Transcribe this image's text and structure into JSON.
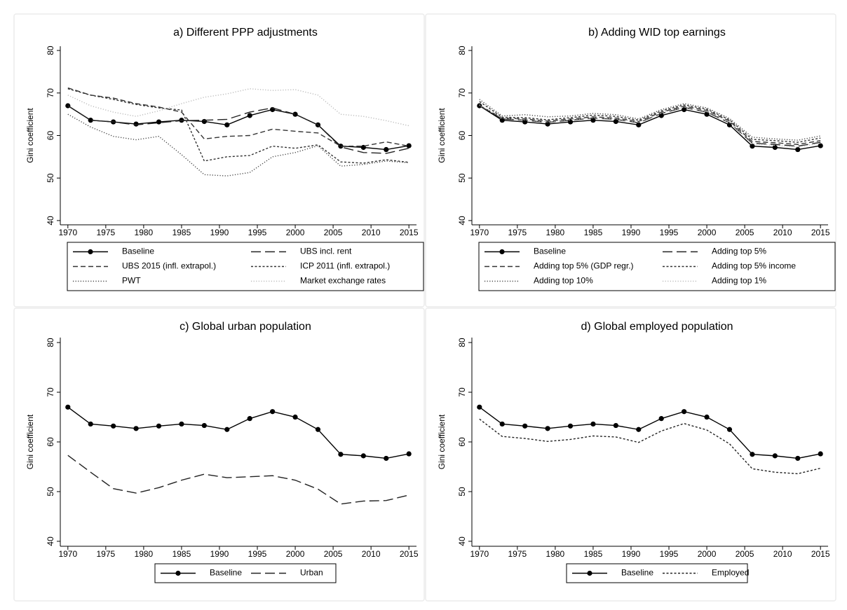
{
  "chart_data": [
    {
      "type": "line",
      "title": "a) Different PPP adjustments",
      "y_label": "Gini coefficient",
      "x": [
        1970,
        1973,
        1976,
        1979,
        1982,
        1985,
        1988,
        1991,
        1994,
        1997,
        2000,
        2003,
        2006,
        2009,
        2012,
        2015
      ],
      "xlim": [
        1969,
        2016
      ],
      "xticks": [
        1970,
        1975,
        1980,
        1985,
        1990,
        1995,
        2000,
        2005,
        2010,
        2015
      ],
      "ylim": [
        39,
        81
      ],
      "yticks": [
        40,
        50,
        60,
        70,
        80
      ],
      "grid": false,
      "series": [
        {
          "name": "Baseline",
          "color": "#000000",
          "dash": "solid",
          "marker": true,
          "values": [
            67,
            63.6,
            63.2,
            62.7,
            63.2,
            63.6,
            63.3,
            62.5,
            64.7,
            66.1,
            65,
            62.5,
            57.5,
            57.2,
            56.7,
            57.6
          ]
        },
        {
          "name": "UBS incl. rent",
          "color": "#222222",
          "dash": "long-dash",
          "marker": false,
          "values": [
            67,
            63.6,
            63.2,
            62.5,
            63,
            63.5,
            63.6,
            63.8,
            65.5,
            66.5,
            65,
            62.5,
            57.3,
            56,
            55.8,
            57
          ]
        },
        {
          "name": "UBS 2015 (infl. extrapol.)",
          "color": "#333333",
          "dash": "dash",
          "marker": false,
          "values": [
            71.2,
            69.5,
            68.8,
            67.5,
            66.7,
            65.5,
            59.2,
            59.8,
            60,
            61.5,
            61,
            60.6,
            57.5,
            57.5,
            58.5,
            57.5
          ]
        },
        {
          "name": "ICP 2011 (infl. extrapol.)",
          "color": "#333333",
          "dash": "short-dash",
          "marker": false,
          "values": [
            71,
            69.5,
            68.5,
            67.3,
            66.5,
            66,
            54,
            55,
            55.3,
            57.5,
            57,
            57.8,
            53.8,
            53.5,
            54.3,
            53.7
          ]
        },
        {
          "name": "PWT",
          "color": "#444444",
          "dash": "dot",
          "marker": false,
          "values": [
            65,
            62,
            59.8,
            59,
            59.8,
            55.5,
            50.8,
            50.5,
            51.3,
            55,
            56,
            57.6,
            52.8,
            53.2,
            54,
            53.6
          ]
        },
        {
          "name": "Market exchange rates",
          "color": "#bbbbbb",
          "dash": "dot",
          "marker": false,
          "values": [
            69.5,
            67,
            65.5,
            64.5,
            65.8,
            67.5,
            69,
            69.8,
            71,
            70.6,
            70.8,
            69.5,
            65,
            64.5,
            63.5,
            62.3
          ]
        }
      ]
    },
    {
      "type": "line",
      "title": "b) Adding WID top earnings",
      "y_label": "Gini coefficient",
      "x": [
        1970,
        1973,
        1976,
        1979,
        1982,
        1985,
        1988,
        1991,
        1994,
        1997,
        2000,
        2003,
        2006,
        2009,
        2012,
        2015
      ],
      "xlim": [
        1969,
        2016
      ],
      "xticks": [
        1970,
        1975,
        1980,
        1985,
        1990,
        1995,
        2000,
        2005,
        2010,
        2015
      ],
      "ylim": [
        39,
        81
      ],
      "yticks": [
        40,
        50,
        60,
        70,
        80
      ],
      "grid": false,
      "series": [
        {
          "name": "Baseline",
          "color": "#000000",
          "dash": "solid",
          "marker": true,
          "values": [
            67,
            63.6,
            63.2,
            62.7,
            63.2,
            63.6,
            63.3,
            62.5,
            64.7,
            66.1,
            65,
            62.5,
            57.5,
            57.2,
            56.7,
            57.6
          ]
        },
        {
          "name": "Adding top 5%",
          "color": "#222222",
          "dash": "long-dash",
          "marker": false,
          "values": [
            67,
            63.9,
            63.6,
            63.1,
            63.6,
            64.1,
            63.8,
            63,
            65.2,
            66.6,
            65.5,
            63,
            58.2,
            57.9,
            57.5,
            58.4
          ]
        },
        {
          "name": "Adding top 5% (GDP regr.)",
          "color": "#333333",
          "dash": "dash",
          "marker": false,
          "values": [
            67.1,
            64.1,
            63.9,
            63.4,
            63.9,
            64.4,
            64.1,
            63.3,
            65.5,
            66.9,
            65.9,
            63.4,
            58.6,
            58.3,
            57.9,
            58.8
          ]
        },
        {
          "name": "Adding top 5% income",
          "color": "#333333",
          "dash": "short-dash",
          "marker": false,
          "values": [
            68,
            64.3,
            64.2,
            63.7,
            64.2,
            64.8,
            64.5,
            63.6,
            65.8,
            67.2,
            66.2,
            63.7,
            59.1,
            58.8,
            58.4,
            59.4
          ]
        },
        {
          "name": "Adding top 10%",
          "color": "#444444",
          "dash": "dot",
          "marker": false,
          "values": [
            68.5,
            64.6,
            64.9,
            64.4,
            64.6,
            65.2,
            64.9,
            63.9,
            66.1,
            67.5,
            66.5,
            64,
            59.6,
            59.2,
            58.9,
            59.9
          ]
        },
        {
          "name": "Adding top 1%",
          "color": "#bbbbbb",
          "dash": "dot",
          "marker": false,
          "values": [
            67.2,
            64.1,
            63.7,
            63.2,
            63.7,
            64.2,
            63.9,
            63.1,
            65.3,
            66.7,
            65.6,
            63.1,
            58,
            57.7,
            57.3,
            58.2
          ]
        }
      ]
    },
    {
      "type": "line",
      "title": "c) Global urban population",
      "y_label": "Gini coefficient",
      "x": [
        1970,
        1973,
        1976,
        1979,
        1982,
        1985,
        1988,
        1991,
        1994,
        1997,
        2000,
        2003,
        2006,
        2009,
        2012,
        2015
      ],
      "xlim": [
        1969,
        2016
      ],
      "xticks": [
        1970,
        1975,
        1980,
        1985,
        1990,
        1995,
        2000,
        2005,
        2010,
        2015
      ],
      "ylim": [
        39,
        81
      ],
      "yticks": [
        40,
        50,
        60,
        70,
        80
      ],
      "grid": false,
      "series": [
        {
          "name": "Baseline",
          "color": "#000000",
          "dash": "solid",
          "marker": true,
          "values": [
            67,
            63.6,
            63.2,
            62.7,
            63.2,
            63.6,
            63.3,
            62.5,
            64.7,
            66.1,
            65,
            62.5,
            57.5,
            57.2,
            56.7,
            57.6
          ]
        },
        {
          "name": "Urban",
          "color": "#222222",
          "dash": "long-dash",
          "marker": false,
          "values": [
            57.3,
            53.9,
            50.6,
            49.7,
            50.8,
            52.3,
            53.5,
            52.8,
            53,
            53.2,
            52.3,
            50.5,
            47.5,
            48.1,
            48.2,
            49.3
          ]
        }
      ]
    },
    {
      "type": "line",
      "title": "d) Global employed population",
      "y_label": "Gini coefficient",
      "x": [
        1970,
        1973,
        1976,
        1979,
        1982,
        1985,
        1988,
        1991,
        1994,
        1997,
        2000,
        2003,
        2006,
        2009,
        2012,
        2015
      ],
      "xlim": [
        1969,
        2016
      ],
      "xticks": [
        1970,
        1975,
        1980,
        1985,
        1990,
        1995,
        2000,
        2005,
        2010,
        2015
      ],
      "ylim": [
        39,
        81
      ],
      "yticks": [
        40,
        50,
        60,
        70,
        80
      ],
      "grid": false,
      "series": [
        {
          "name": "Baseline",
          "color": "#000000",
          "dash": "solid",
          "marker": true,
          "values": [
            67,
            63.6,
            63.2,
            62.7,
            63.2,
            63.6,
            63.3,
            62.5,
            64.7,
            66.1,
            65,
            62.5,
            57.5,
            57.2,
            56.7,
            57.6
          ]
        },
        {
          "name": "Employed",
          "color": "#222222",
          "dash": "short-dash",
          "marker": false,
          "values": [
            64.6,
            61.1,
            60.7,
            60.1,
            60.5,
            61.2,
            61,
            59.9,
            62.2,
            63.7,
            62.4,
            59.6,
            54.6,
            53.9,
            53.6,
            54.7
          ]
        }
      ]
    }
  ]
}
